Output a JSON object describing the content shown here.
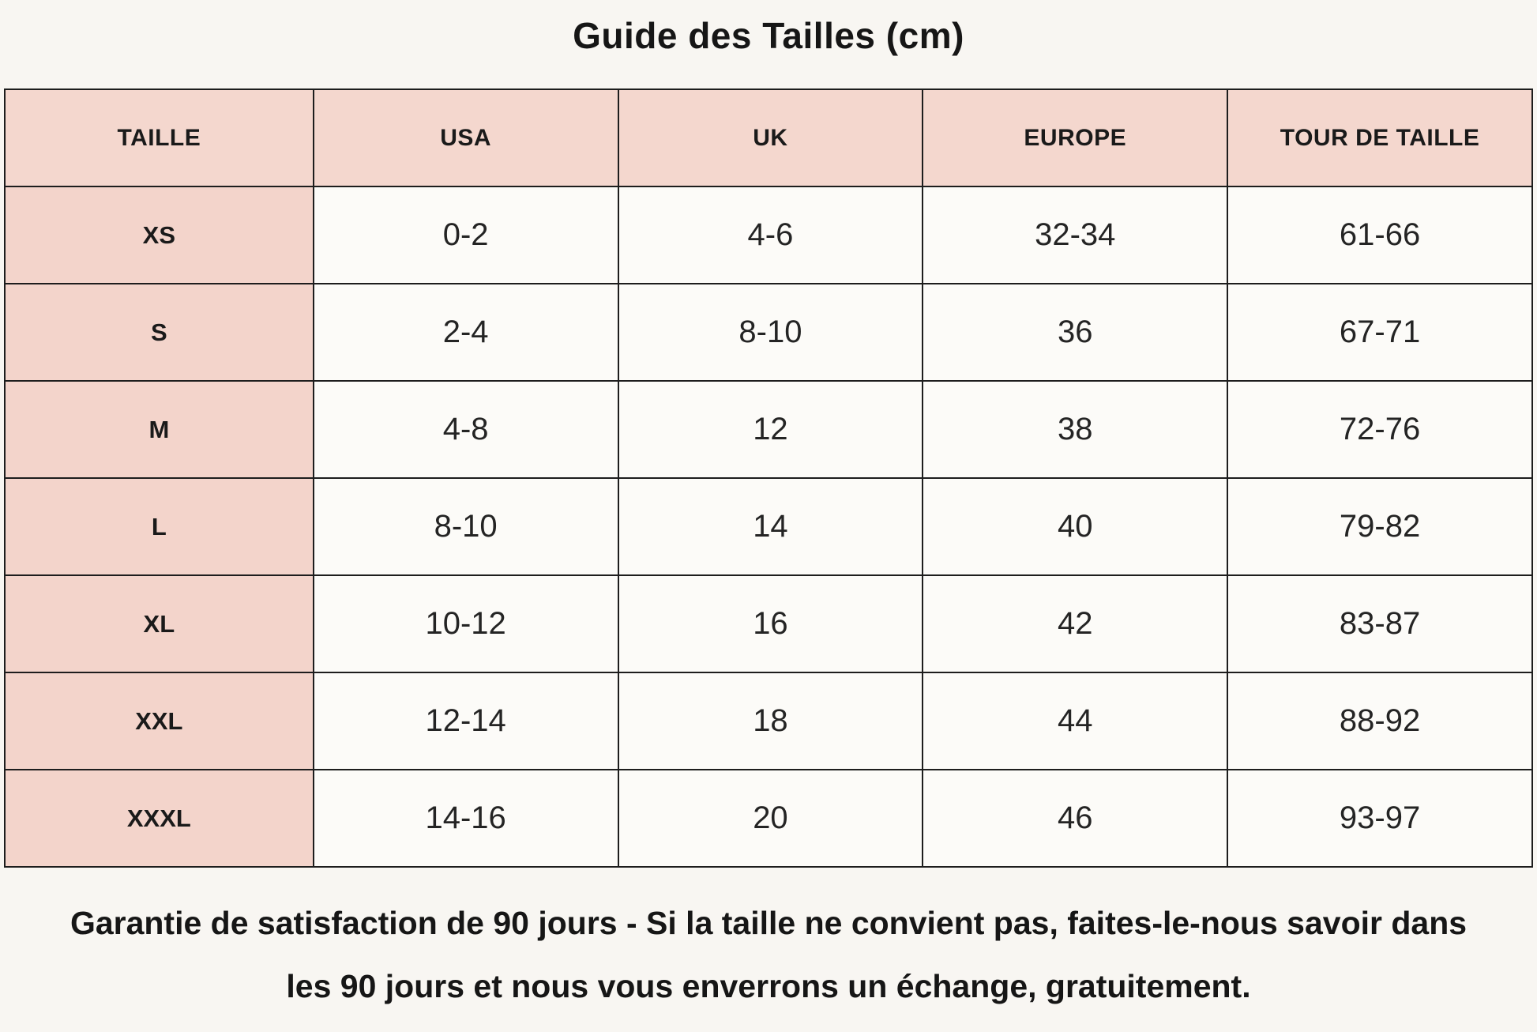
{
  "title": "Guide des Tailles (cm)",
  "table": {
    "headers": [
      "TAILLE",
      "USA",
      "UK",
      "EUROPE",
      "TOUR DE TAILLE"
    ],
    "rows": [
      [
        "XS",
        "0-2",
        "4-6",
        "32-34",
        "61-66"
      ],
      [
        "S",
        "2-4",
        "8-10",
        "36",
        "67-71"
      ],
      [
        "M",
        "4-8",
        "12",
        "38",
        "72-76"
      ],
      [
        "L",
        "8-10",
        "14",
        "40",
        "79-82"
      ],
      [
        "XL",
        "10-12",
        "16",
        "42",
        "83-87"
      ],
      [
        "XXL",
        "12-14",
        "18",
        "44",
        "88-92"
      ],
      [
        "XXXL",
        "14-16",
        "20",
        "46",
        "93-97"
      ]
    ]
  },
  "footer": {
    "line1": "Garantie de satisfaction de 90 jours - Si la taille ne convient pas, faites-le-nous savoir dans",
    "line2": "les 90 jours et nous vous enverrons un échange, gratuitement."
  },
  "colors": {
    "header_pink": "#f4d7ce",
    "row_header_pink": "#f3d4cb",
    "cell_background": "#fcfbf8",
    "page_background": "#f8f6f2",
    "border": "#1d1d1d",
    "text": "#1c1c1c"
  }
}
